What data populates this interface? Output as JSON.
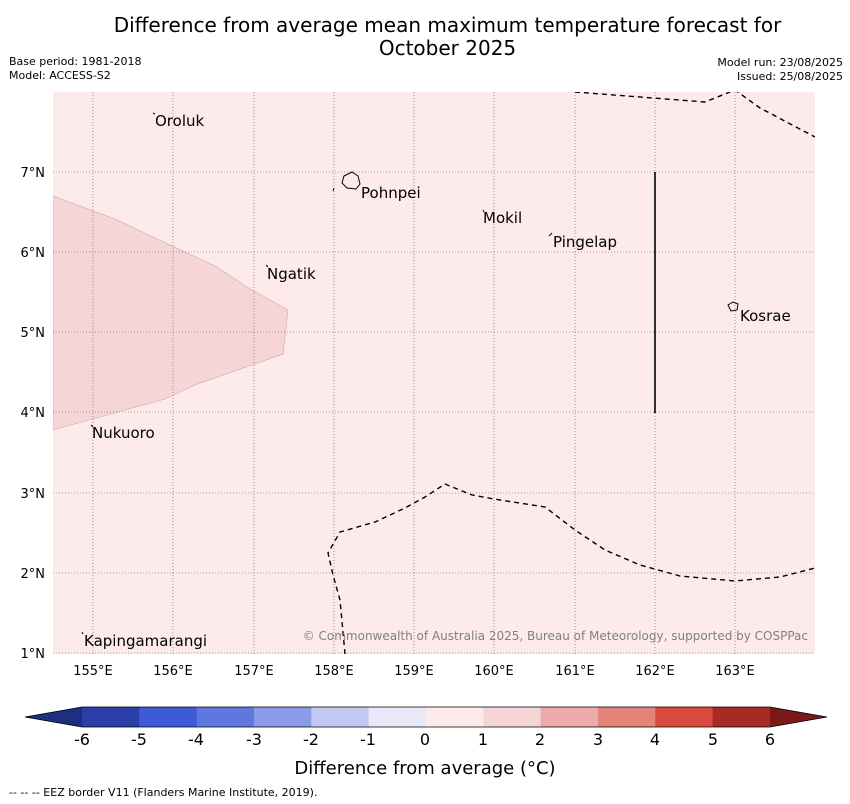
{
  "title_line1": "Difference from average mean maximum temperature forecast for",
  "title_line2": "October 2025",
  "base_period": "Base period: 1981-2018",
  "model": "Model: ACCESS-S2",
  "model_run": "Model run: 23/08/2025",
  "issued": "Issued: 25/08/2025",
  "map": {
    "lon_range": [
      154.5,
      164.0
    ],
    "lat_range": [
      1.0,
      8.0
    ],
    "background_category": "0 to 1",
    "lon_ticks": [
      "155°E",
      "156°E",
      "157°E",
      "158°E",
      "159°E",
      "160°E",
      "161°E",
      "162°E",
      "163°E"
    ],
    "lat_ticks": [
      "7°N",
      "6°N",
      "5°N",
      "4°N",
      "3°N",
      "2°N",
      "1°N"
    ],
    "places": [
      {
        "name": "Oroluk",
        "lon": 155.75,
        "lat": 7.6
      },
      {
        "name": "Pohnpei",
        "lon": 158.3,
        "lat": 6.85
      },
      {
        "name": "Mokil",
        "lon": 159.85,
        "lat": 6.45
      },
      {
        "name": "Pingelap",
        "lon": 160.7,
        "lat": 6.15
      },
      {
        "name": "Ngatik",
        "lon": 157.15,
        "lat": 5.75
      },
      {
        "name": "Kosrae",
        "lon": 162.95,
        "lat": 5.3
      },
      {
        "name": "Nukuoro",
        "lon": 154.95,
        "lat": 3.85
      },
      {
        "name": "Kapingamarangi",
        "lon": 154.85,
        "lat": 1.2
      }
    ],
    "copyright": "© Commonwealth of Australia 2025, Bureau of Meteorology, supported by COSPPac"
  },
  "colorbar": {
    "ticks": [
      "-6",
      "-5",
      "-4",
      "-3",
      "-2",
      "-1",
      "0",
      "1",
      "2",
      "3",
      "4",
      "5",
      "6"
    ],
    "colors": [
      "#1e2f80",
      "#2a40a8",
      "#3f5ad8",
      "#5f78e0",
      "#8b9be8",
      "#c3c8f2",
      "#e8e8f8",
      "#fcebea",
      "#f5d5d5",
      "#edaaa8",
      "#e48378",
      "#d84a3e",
      "#a82a25",
      "#7a1a18"
    ],
    "label": "Difference from average (°C)"
  },
  "footer": "--  --  -- EEZ border V11 (Flanders Marine Institute, 2019)."
}
